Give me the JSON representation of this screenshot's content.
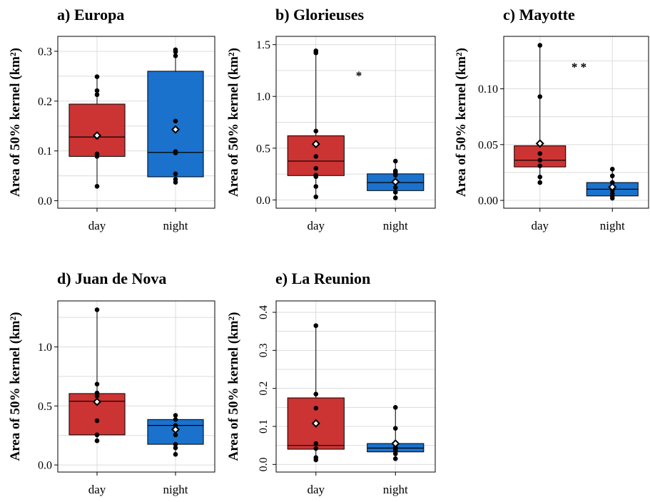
{
  "chart_data": [
    {
      "type": "box",
      "title": "a) Europa",
      "ylabel": "Area of 50% kernel (km²)",
      "ylim": [
        -0.015,
        0.33
      ],
      "yticks": [
        0.0,
        0.1,
        0.2,
        0.3
      ],
      "ytick_labels": [
        "0.0",
        "0.1",
        "0.2",
        "0.3"
      ],
      "categories": [
        "day",
        "night"
      ],
      "significance": "",
      "boxes": [
        {
          "name": "day",
          "color": "#cc3333",
          "q1": 0.089,
          "median": 0.128,
          "q3": 0.194,
          "whisker_low": 0.029,
          "whisker_high": 0.249,
          "mean": 0.131,
          "points": [
            0.249,
            0.221,
            0.213,
            0.131,
            0.128,
            0.094,
            0.089,
            0.029
          ]
        },
        {
          "name": "night",
          "color": "#1a72cc",
          "q1": 0.048,
          "median": 0.097,
          "q3": 0.26,
          "whisker_low": 0.036,
          "whisker_high": 0.302,
          "mean": 0.143,
          "points": [
            0.303,
            0.299,
            0.291,
            0.16,
            0.143,
            0.099,
            0.096,
            0.054,
            0.043,
            0.037
          ]
        }
      ]
    },
    {
      "type": "box",
      "title": "b) Glorieuses",
      "ylabel": "Area of 50% kernel (km²)",
      "ylim": [
        -0.08,
        1.58
      ],
      "yticks": [
        0.0,
        0.5,
        1.0,
        1.5
      ],
      "ytick_labels": [
        "0.0",
        "0.5",
        "1.0",
        "1.5"
      ],
      "categories": [
        "day",
        "night"
      ],
      "significance": "*",
      "boxes": [
        {
          "name": "day",
          "color": "#cc3333",
          "q1": 0.235,
          "median": 0.375,
          "q3": 0.62,
          "whisker_low": 0.03,
          "whisker_high": 1.44,
          "mean": 0.54,
          "points": [
            1.44,
            1.42,
            0.665,
            0.54,
            0.42,
            0.305,
            0.24,
            0.225,
            0.13,
            0.03
          ]
        },
        {
          "name": "night",
          "color": "#1a72cc",
          "q1": 0.09,
          "median": 0.168,
          "q3": 0.252,
          "whisker_low": 0.02,
          "whisker_high": 0.375,
          "mean": 0.175,
          "points": [
            0.375,
            0.28,
            0.265,
            0.24,
            0.175,
            0.12,
            0.075,
            0.02
          ]
        }
      ]
    },
    {
      "type": "box",
      "title": "c) Mayotte",
      "ylabel": "Area of 50% kernel (km²)",
      "ylim": [
        -0.007,
        0.147
      ],
      "yticks": [
        0.0,
        0.05,
        0.1
      ],
      "ytick_labels": [
        "0.00",
        "0.05",
        "0.10"
      ],
      "categories": [
        "day",
        "night"
      ],
      "significance": "* *",
      "boxes": [
        {
          "name": "day",
          "color": "#cc3333",
          "q1": 0.03,
          "median": 0.036,
          "q3": 0.049,
          "whisker_low": 0.016,
          "whisker_high": 0.139,
          "mean": 0.051,
          "points": [
            0.139,
            0.093,
            0.051,
            0.042,
            0.036,
            0.031,
            0.021,
            0.016
          ]
        },
        {
          "name": "night",
          "color": "#1a72cc",
          "q1": 0.004,
          "median": 0.01,
          "q3": 0.016,
          "whisker_low": 0.002,
          "whisker_high": 0.028,
          "mean": 0.012,
          "points": [
            0.028,
            0.022,
            0.016,
            0.012,
            0.009,
            0.006,
            0.004,
            0.002
          ]
        }
      ]
    },
    {
      "type": "box",
      "title": "d) Juan de Nova",
      "ylabel": "Area of 50% kernel (km²)",
      "ylim": [
        -0.06,
        1.39
      ],
      "yticks": [
        0.0,
        0.5,
        1.0
      ],
      "ytick_labels": [
        "0.0",
        "0.5",
        "1.0"
      ],
      "categories": [
        "day",
        "night"
      ],
      "significance": "",
      "boxes": [
        {
          "name": "day",
          "color": "#cc3333",
          "q1": 0.255,
          "median": 0.54,
          "q3": 0.605,
          "whisker_low": 0.205,
          "whisker_high": 1.315,
          "mean": 0.535,
          "points": [
            1.315,
            0.685,
            0.61,
            0.585,
            0.54,
            0.535,
            0.375,
            0.255,
            0.205
          ]
        },
        {
          "name": "night",
          "color": "#1a72cc",
          "q1": 0.175,
          "median": 0.335,
          "q3": 0.385,
          "whisker_low": 0.09,
          "whisker_high": 0.42,
          "mean": 0.3,
          "points": [
            0.42,
            0.385,
            0.335,
            0.3,
            0.255,
            0.175,
            0.145,
            0.09
          ]
        }
      ]
    },
    {
      "type": "box",
      "title": "e) La Reunion",
      "ylabel": "Area of 50% kernel (km²)",
      "ylim": [
        -0.02,
        0.43
      ],
      "yticks": [
        0.0,
        0.1,
        0.2,
        0.3,
        0.4
      ],
      "ytick_labels": [
        "0.0",
        "0.1",
        "0.2",
        "0.3",
        "0.4"
      ],
      "categories": [
        "day",
        "night"
      ],
      "significance": "",
      "boxes": [
        {
          "name": "day",
          "color": "#cc3333",
          "q1": 0.04,
          "median": 0.05,
          "q3": 0.175,
          "whisker_low": 0.012,
          "whisker_high": 0.365,
          "mean": 0.108,
          "points": [
            0.365,
            0.185,
            0.148,
            0.108,
            0.055,
            0.042,
            0.018,
            0.012
          ]
        },
        {
          "name": "night",
          "color": "#1a72cc",
          "q1": 0.033,
          "median": 0.043,
          "q3": 0.055,
          "whisker_low": 0.015,
          "whisker_high": 0.15,
          "mean": 0.055,
          "points": [
            0.15,
            0.095,
            0.055,
            0.045,
            0.04,
            0.035,
            0.028,
            0.015
          ]
        }
      ]
    }
  ]
}
